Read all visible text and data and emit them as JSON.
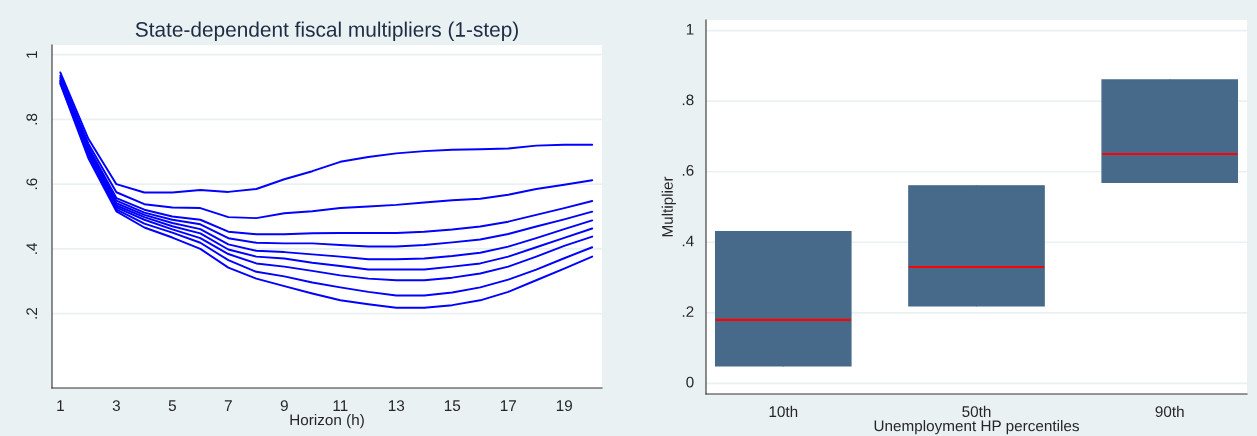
{
  "chart_data": [
    {
      "type": "line",
      "title": "State-dependent fiscal multipliers (1-step)",
      "xlabel": "Horizon (h)",
      "x": [
        1,
        2,
        3,
        4,
        5,
        6,
        7,
        8,
        9,
        10,
        11,
        12,
        13,
        14,
        15,
        16,
        17,
        18,
        19,
        20
      ],
      "xlim": [
        0.7,
        20.35
      ],
      "xticks": [
        1,
        3,
        5,
        7,
        9,
        11,
        13,
        15,
        17,
        19
      ],
      "ylim": [
        -0.03,
        1.03
      ],
      "yticks": [
        {
          "value": 0.2,
          "label": ".2"
        },
        {
          "value": 0.4,
          "label": ".4"
        },
        {
          "value": 0.6,
          "label": ".6"
        },
        {
          "value": 0.8,
          "label": ".8"
        },
        1
      ],
      "grid": "y",
      "marker": "none",
      "line_style": "solid",
      "series": [
        {
          "color": "#0000ff",
          "values": [
            0.945,
            0.74,
            0.6,
            0.574,
            0.574,
            0.582,
            0.576,
            0.585,
            0.615,
            0.64,
            0.669,
            0.684,
            0.695,
            0.702,
            0.706,
            0.708,
            0.71,
            0.719,
            0.722,
            0.722
          ]
        },
        {
          "color": "#0000ff",
          "values": [
            0.935,
            0.725,
            0.575,
            0.538,
            0.528,
            0.526,
            0.498,
            0.495,
            0.51,
            0.516,
            0.526,
            0.531,
            0.536,
            0.543,
            0.55,
            0.555,
            0.567,
            0.585,
            0.598,
            0.612
          ]
        },
        {
          "color": "#0000ff",
          "values": [
            0.93,
            0.715,
            0.557,
            0.521,
            0.5,
            0.49,
            0.453,
            0.445,
            0.445,
            0.448,
            0.449,
            0.449,
            0.449,
            0.453,
            0.46,
            0.469,
            0.484,
            0.505,
            0.526,
            0.548
          ]
        },
        {
          "color": "#0000ff",
          "values": [
            0.925,
            0.71,
            0.549,
            0.512,
            0.49,
            0.476,
            0.433,
            0.419,
            0.417,
            0.417,
            0.412,
            0.407,
            0.407,
            0.412,
            0.42,
            0.429,
            0.446,
            0.469,
            0.491,
            0.515
          ]
        },
        {
          "color": "#0000ff",
          "values": [
            0.92,
            0.705,
            0.541,
            0.505,
            0.48,
            0.461,
            0.414,
            0.394,
            0.39,
            0.383,
            0.376,
            0.368,
            0.368,
            0.37,
            0.378,
            0.388,
            0.407,
            0.433,
            0.461,
            0.488
          ]
        },
        {
          "color": "#0000ff",
          "values": [
            0.918,
            0.7,
            0.534,
            0.498,
            0.47,
            0.448,
            0.398,
            0.376,
            0.37,
            0.357,
            0.347,
            0.336,
            0.336,
            0.336,
            0.345,
            0.355,
            0.376,
            0.405,
            0.434,
            0.463
          ]
        },
        {
          "color": "#0000ff",
          "values": [
            0.915,
            0.695,
            0.528,
            0.49,
            0.46,
            0.433,
            0.384,
            0.355,
            0.345,
            0.332,
            0.318,
            0.308,
            0.303,
            0.303,
            0.311,
            0.324,
            0.345,
            0.376,
            0.409,
            0.438
          ]
        },
        {
          "color": "#0000ff",
          "values": [
            0.912,
            0.69,
            0.522,
            0.478,
            0.45,
            0.419,
            0.365,
            0.329,
            0.315,
            0.296,
            0.281,
            0.267,
            0.256,
            0.256,
            0.265,
            0.281,
            0.305,
            0.336,
            0.371,
            0.405
          ]
        },
        {
          "color": "#0000ff",
          "values": [
            0.91,
            0.68,
            0.516,
            0.466,
            0.435,
            0.4,
            0.342,
            0.308,
            0.285,
            0.262,
            0.241,
            0.229,
            0.218,
            0.218,
            0.226,
            0.241,
            0.267,
            0.303,
            0.339,
            0.376
          ]
        }
      ]
    },
    {
      "type": "box",
      "xlabel": "Unemployment HP percentiles",
      "ylabel": "Multiplier",
      "categories": [
        "10th",
        "50th",
        "90th"
      ],
      "ylim": [
        -0.03,
        1.03
      ],
      "yticks": [
        0,
        {
          "value": 0.2,
          "label": ".2"
        },
        {
          "value": 0.4,
          "label": ".4"
        },
        {
          "value": 0.6,
          "label": ".6"
        },
        {
          "value": 0.8,
          "label": ".8"
        },
        1
      ],
      "grid": "y",
      "series": [
        {
          "color": "#476a8a",
          "boxes": [
            {
              "low": 0.05,
              "q1": 0.05,
              "median": 0.18,
              "q3": 0.43,
              "high": 0.43
            },
            {
              "low": 0.22,
              "q1": 0.22,
              "median": 0.33,
              "q3": 0.56,
              "high": 0.56
            },
            {
              "low": 0.57,
              "q1": 0.57,
              "median": 0.65,
              "q3": 0.86,
              "high": 0.86
            }
          ]
        }
      ]
    }
  ]
}
